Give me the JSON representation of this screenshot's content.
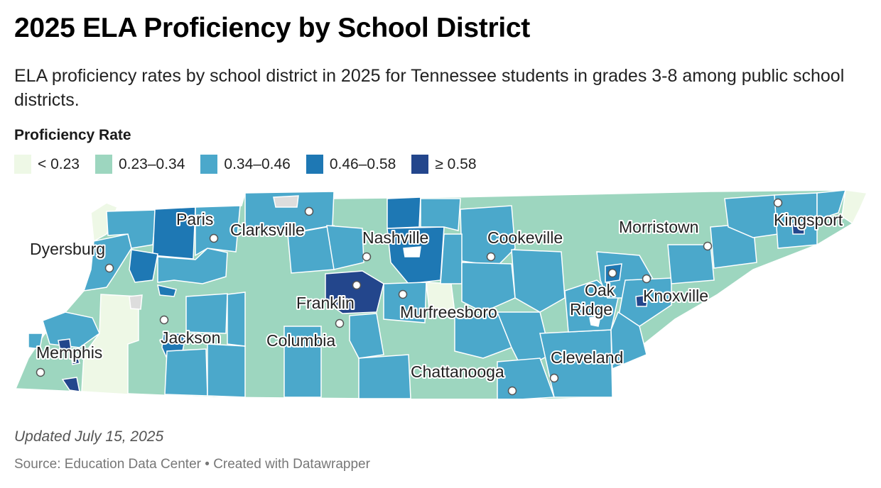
{
  "title": "2025 ELA Proficiency by School District",
  "subtitle": "ELA proficiency rates by school district in 2025 for Tennessee students in grades 3-8 among public school districts.",
  "legend": {
    "title": "Proficiency Rate",
    "items": [
      {
        "label": "< 0.23",
        "color": "#eef8e6"
      },
      {
        "label": "0.23–0.34",
        "color": "#9dd6bf"
      },
      {
        "label": "0.34–0.46",
        "color": "#4ba8cb"
      },
      {
        "label": "0.46–0.58",
        "color": "#1e78b4"
      },
      {
        "label": "≥ 0.58",
        "color": "#23468c"
      }
    ]
  },
  "colors": {
    "border": "#ffffff",
    "no_data": "#dddddd"
  },
  "cities": [
    {
      "name": "Paris"
    },
    {
      "name": "Clarksville"
    },
    {
      "name": "Nashville"
    },
    {
      "name": "Cookeville"
    },
    {
      "name": "Morristown"
    },
    {
      "name": "Kingsport"
    },
    {
      "name": "Dyersburg"
    },
    {
      "name": "Oak"
    },
    {
      "name": "Ridge"
    },
    {
      "name": "Knoxville"
    },
    {
      "name": "Franklin"
    },
    {
      "name": "Murfreesboro"
    },
    {
      "name": "Jackson"
    },
    {
      "name": "Columbia"
    },
    {
      "name": "Memphis"
    },
    {
      "name": "Cleveland"
    },
    {
      "name": "Chattanooga"
    }
  ],
  "footer": {
    "updated": "Updated July 15, 2025",
    "source": "Source: Education Data Center • Created with Datawrapper"
  }
}
